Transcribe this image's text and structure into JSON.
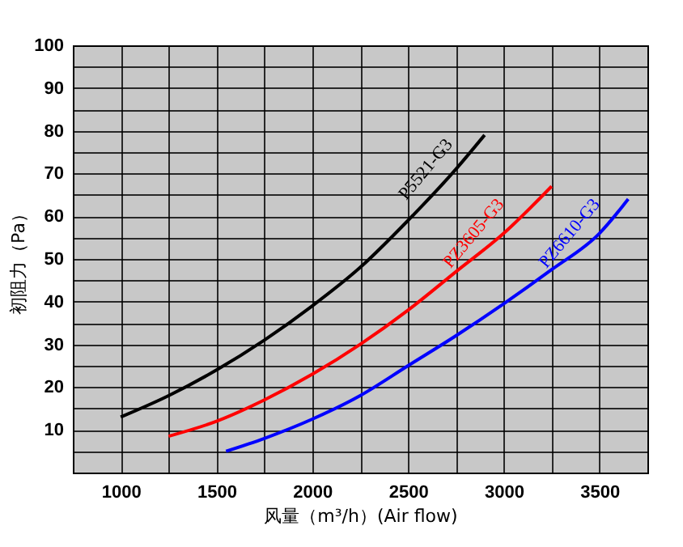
{
  "chart_data": {
    "type": "line",
    "xlabel": "风量（m³/h）(Air flow)",
    "ylabel": "初阻力（Pa）",
    "xlim": [
      750,
      3750
    ],
    "xticks": [
      {
        "value": 750,
        "label": null
      },
      1000,
      {
        "value": 1250,
        "label": null
      },
      1500,
      {
        "value": 1750,
        "label": null
      },
      2000,
      {
        "value": 2250,
        "label": null
      },
      2500,
      {
        "value": 2750,
        "label": null
      },
      3000,
      {
        "value": 3250,
        "label": null
      },
      3500,
      {
        "value": 3750,
        "label": null
      }
    ],
    "ylim": [
      0,
      100
    ],
    "yticks": [
      {
        "value": 0,
        "label": null
      },
      {
        "value": 5,
        "label": null
      },
      10,
      {
        "value": 15,
        "label": null
      },
      20,
      {
        "value": 25,
        "label": null
      },
      30,
      {
        "value": 35,
        "label": null
      },
      40,
      {
        "value": 45,
        "label": null
      },
      50,
      {
        "value": 55,
        "label": null
      },
      60,
      {
        "value": 65,
        "label": null
      },
      70,
      {
        "value": 75,
        "label": null
      },
      80,
      {
        "value": 85,
        "label": null
      },
      90,
      {
        "value": 95,
        "label": null
      },
      100
    ],
    "grid": true,
    "legend": false,
    "marker": "none",
    "line_style": "solid",
    "series": [
      {
        "name": "P5521-G3",
        "color": "#000000",
        "x": [
          1000,
          1250,
          1500,
          1750,
          2000,
          2250,
          2500,
          2750,
          2900
        ],
        "values": [
          13,
          18,
          24,
          31,
          39,
          48,
          59,
          71,
          79
        ]
      },
      {
        "name": "PZ3605-G3",
        "color": "#ff0000",
        "x": [
          1250,
          1500,
          1750,
          2000,
          2250,
          2500,
          2750,
          3000,
          3250
        ],
        "values": [
          8.5,
          12,
          17,
          23,
          30,
          38,
          47,
          56,
          67
        ]
      },
      {
        "name": "PZ6610-G3",
        "color": "#0000ff",
        "x": [
          1550,
          1750,
          2000,
          2250,
          2500,
          2750,
          3000,
          3250,
          3500,
          3650
        ],
        "values": [
          5,
          8,
          12.5,
          18,
          25,
          32,
          39.5,
          47.5,
          56,
          64
        ]
      }
    ]
  }
}
